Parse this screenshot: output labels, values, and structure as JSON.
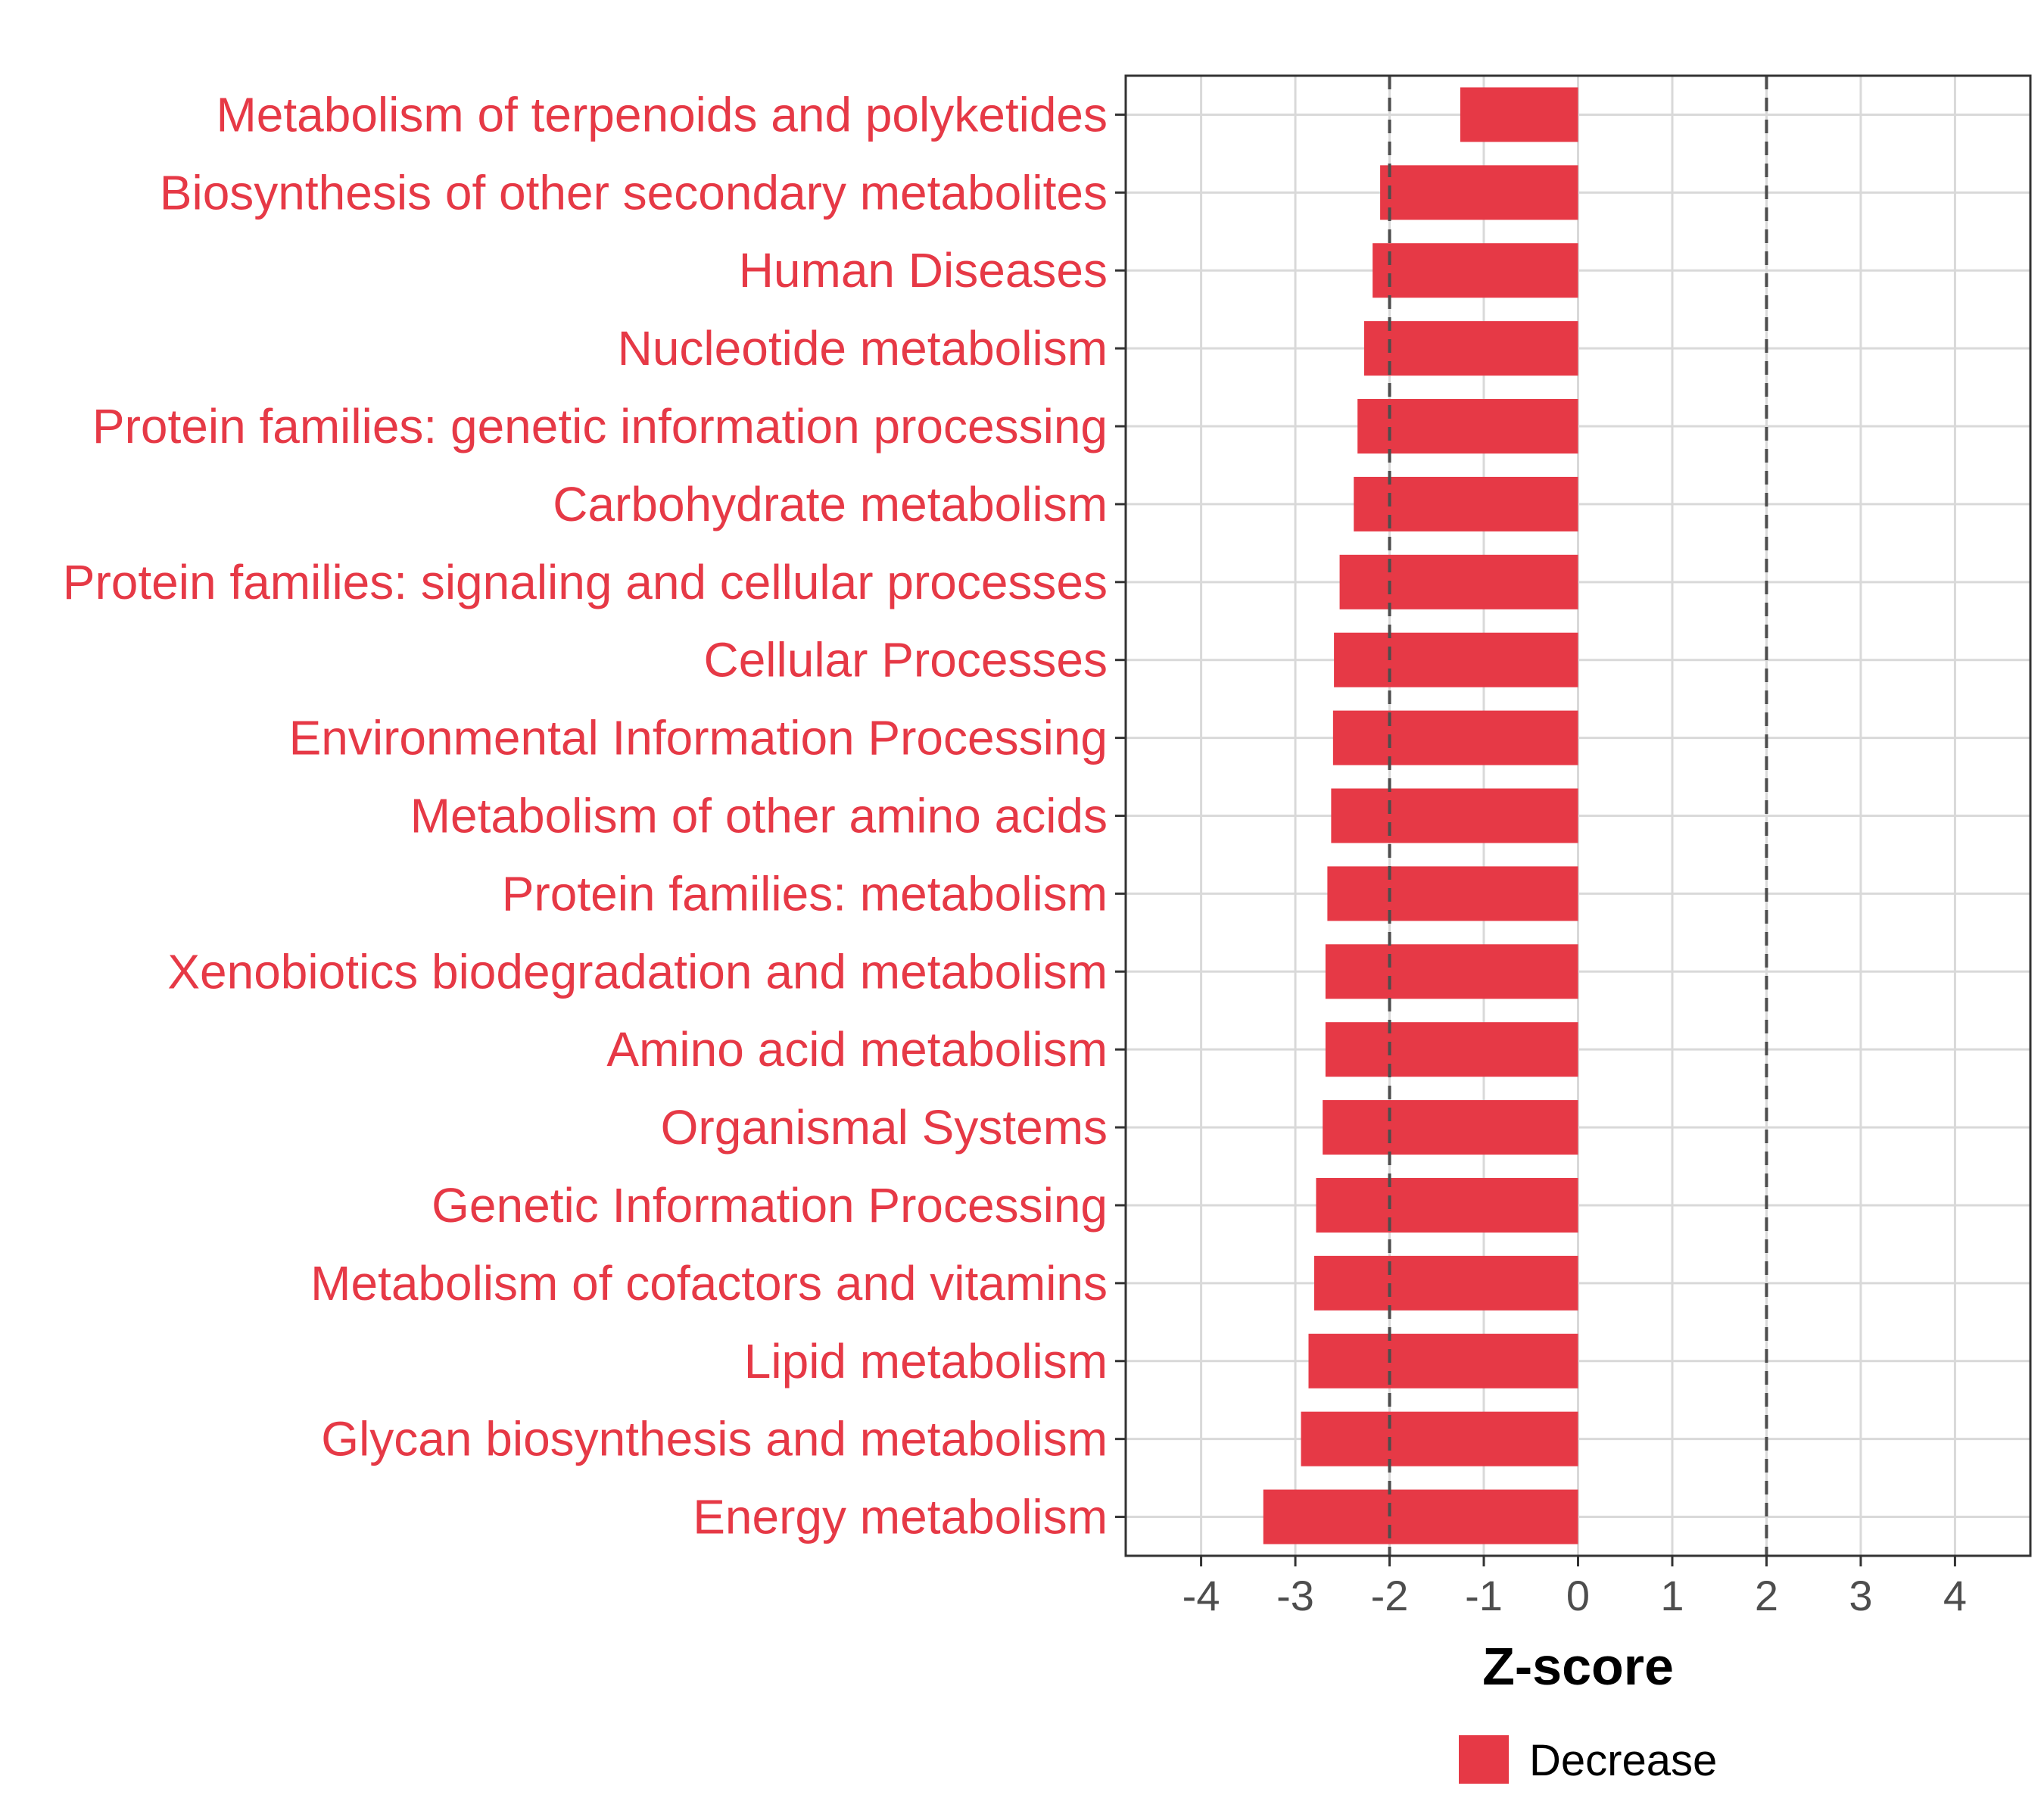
{
  "chart_data": {
    "type": "bar",
    "orientation": "horizontal",
    "categories": [
      "Metabolism of terpenoids and polyketides",
      "Biosynthesis of other secondary metabolites",
      "Human Diseases",
      "Nucleotide metabolism",
      "Protein families: genetic information processing",
      "Carbohydrate metabolism",
      "Protein families: signaling and cellular processes",
      "Cellular Processes",
      "Environmental Information Processing",
      "Metabolism of other amino acids",
      "Protein families: metabolism",
      "Xenobiotics biodegradation and metabolism",
      "Amino acid metabolism",
      "Organismal Systems",
      "Genetic Information Processing",
      "Metabolism of cofactors and vitamins",
      "Lipid metabolism",
      "Glycan biosynthesis and metabolism",
      "Energy metabolism"
    ],
    "series": [
      {
        "name": "Decrease",
        "color": "#e63946",
        "values": [
          -1.25,
          -2.1,
          -2.18,
          -2.27,
          -2.34,
          -2.38,
          -2.53,
          -2.59,
          -2.6,
          -2.62,
          -2.66,
          -2.68,
          -2.68,
          -2.71,
          -2.78,
          -2.8,
          -2.86,
          -2.94,
          -3.34
        ]
      }
    ],
    "xlabel": "Z-score",
    "xlim": [
      -4.8,
      4.8
    ],
    "xticks": [
      -4,
      -3,
      -2,
      -1,
      0,
      1,
      2,
      3,
      4
    ],
    "xtick_labels": [
      "-4",
      "-3",
      "-2",
      "-1",
      "0",
      "1",
      "2",
      "3",
      "4"
    ],
    "threshold_lines": [
      -2,
      2
    ],
    "grid": true,
    "legend": {
      "position": "bottom",
      "entries": [
        "Decrease"
      ]
    },
    "label_color": "#e63946"
  }
}
